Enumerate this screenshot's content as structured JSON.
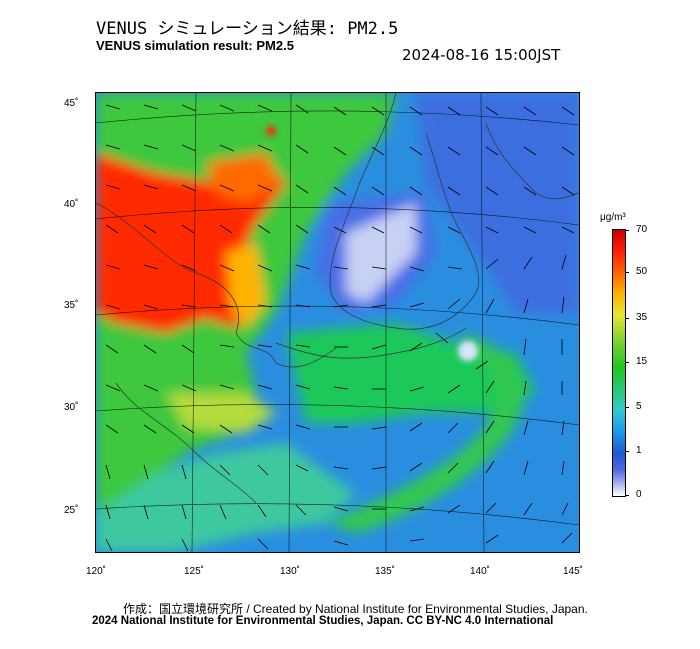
{
  "header": {
    "title_jp": "VENUS シミュレーション結果: PM2.5",
    "title_en": "VENUS simulation result: PM2.5",
    "timestamp": "2024-08-16 15:00JST"
  },
  "map": {
    "lat_labels": [
      "45˚",
      "40˚",
      "35˚",
      "30˚",
      "25˚"
    ],
    "lon_labels": [
      "120˚",
      "125˚",
      "130˚",
      "135˚",
      "140˚",
      "145˚"
    ],
    "ocean_color": "#2a8ee0",
    "land_color": "#28c83c",
    "high_color": "#ff1e00"
  },
  "legend": {
    "unit": "μg/m³",
    "labels": [
      "70",
      "50",
      "35",
      "15",
      "5",
      "1",
      "0"
    ]
  },
  "footer": {
    "credit_jp": "作成：国立環境研究所 / Created by National Institute for Environmental Studies, Japan.",
    "credit_en": "2024 National Institute for Environmental Studies, Japan. CC BY-NC 4.0 International"
  }
}
